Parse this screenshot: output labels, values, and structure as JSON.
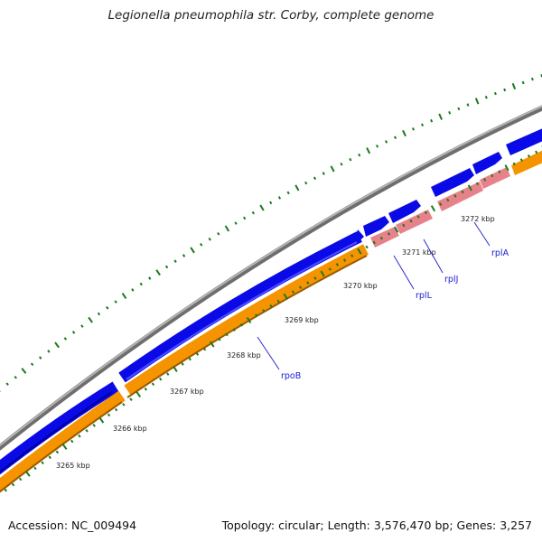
{
  "title": "Legionella pneumophila str. Corby, complete genome",
  "footer": {
    "accession": "Accession: NC_009494",
    "summary": "Topology: circular; Length: 3,576,470 bp; Genes: 3,257"
  },
  "colors": {
    "backbone": "#8a8a8a",
    "cds": "#0a0ae6",
    "gene": "#f59300",
    "rrna_like": "#e8828a",
    "ticks": "#1a7a1a",
    "label": "#1a1ad0"
  },
  "scale_labels": [
    "3265 kbp",
    "3266 kbp",
    "3267 kbp",
    "3268 kbp",
    "3269 kbp",
    "3270 kbp",
    "3271 kbp",
    "3272 kbp"
  ],
  "gene_labels": [
    "rpoB",
    "rplL",
    "rplJ",
    "rplA"
  ]
}
